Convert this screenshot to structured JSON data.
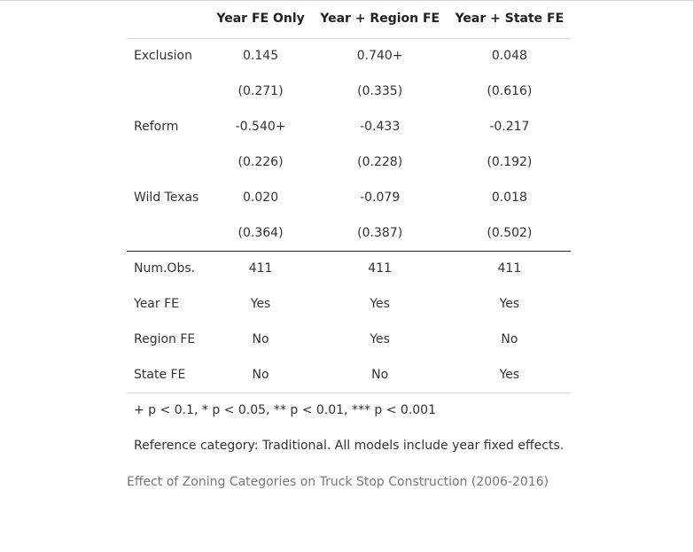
{
  "table": {
    "headers": [
      "",
      "Year FE Only",
      "Year + Region FE",
      "Year + State FE"
    ],
    "coef_rows": [
      {
        "label": "Exclusion",
        "values": [
          "0.145",
          "0.740+",
          "0.048"
        ],
        "se": [
          "(0.271)",
          "(0.335)",
          "(0.616)"
        ]
      },
      {
        "label": "Reform",
        "values": [
          "-0.540+",
          "-0.433",
          "-0.217"
        ],
        "se": [
          "(0.226)",
          "(0.228)",
          "(0.192)"
        ]
      },
      {
        "label": "Wild Texas",
        "values": [
          "0.020",
          "-0.079",
          "0.018"
        ],
        "se": [
          "(0.364)",
          "(0.387)",
          "(0.502)"
        ]
      }
    ],
    "stat_rows": [
      {
        "label": "Num.Obs.",
        "values": [
          "411",
          "411",
          "411"
        ]
      },
      {
        "label": "Year FE",
        "values": [
          "Yes",
          "Yes",
          "Yes"
        ]
      },
      {
        "label": "Region FE",
        "values": [
          "No",
          "Yes",
          "No"
        ]
      },
      {
        "label": "State FE",
        "values": [
          "No",
          "No",
          "Yes"
        ]
      }
    ],
    "notes": [
      "+ p < 0.1, * p < 0.05, ** p < 0.01, *** p < 0.001",
      "Reference category: Traditional. All models include year fixed effects."
    ]
  },
  "caption": "Effect of Zoning Categories on Truck Stop Construction (2006-2016)"
}
